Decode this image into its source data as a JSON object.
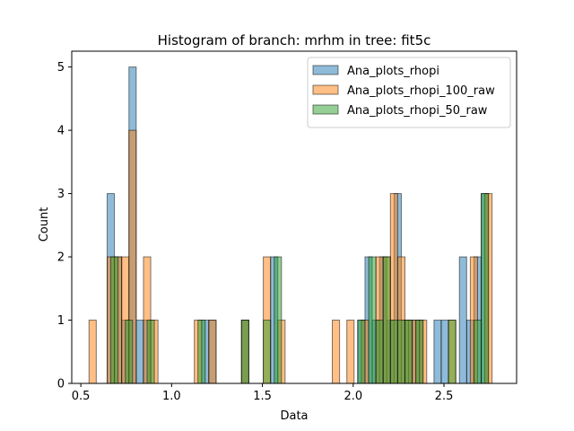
{
  "chart_data": {
    "type": "histogram",
    "title": "Histogram of branch: mrhm in tree: fit5c",
    "xlabel": "Data",
    "ylabel": "Count",
    "xlim": [
      0.45,
      2.9
    ],
    "ylim": [
      0,
      5.25
    ],
    "xticks": [
      0.5,
      1.0,
      1.5,
      2.0,
      2.5
    ],
    "xtick_labels": [
      "0.5",
      "1.0",
      "1.5",
      "2.0",
      "2.5"
    ],
    "yticks": [
      0,
      1,
      2,
      3,
      4,
      5
    ],
    "ytick_labels": [
      "0",
      "1",
      "2",
      "3",
      "4",
      "5"
    ],
    "grid": false,
    "legend_position": "top-right",
    "series": [
      {
        "name": "Ana_plots_rhopi",
        "color": "#1f77b4",
        "bins": [
          {
            "x0": 0.645,
            "x1": 0.685,
            "count": 3
          },
          {
            "x0": 0.685,
            "x1": 0.725,
            "count": 2
          },
          {
            "x0": 0.725,
            "x1": 0.765,
            "count": 1
          },
          {
            "x0": 0.765,
            "x1": 0.805,
            "count": 5
          },
          {
            "x0": 0.805,
            "x1": 0.845,
            "count": 1
          },
          {
            "x0": 0.845,
            "x1": 0.885,
            "count": 1
          },
          {
            "x0": 1.165,
            "x1": 1.205,
            "count": 1
          },
          {
            "x0": 1.205,
            "x1": 1.245,
            "count": 1
          },
          {
            "x0": 1.385,
            "x1": 1.425,
            "count": 1
          },
          {
            "x0": 1.545,
            "x1": 1.585,
            "count": 2
          },
          {
            "x0": 2.025,
            "x1": 2.065,
            "count": 1
          },
          {
            "x0": 2.065,
            "x1": 2.105,
            "count": 2
          },
          {
            "x0": 2.105,
            "x1": 2.145,
            "count": 1
          },
          {
            "x0": 2.145,
            "x1": 2.185,
            "count": 2
          },
          {
            "x0": 2.185,
            "x1": 2.225,
            "count": 1
          },
          {
            "x0": 2.225,
            "x1": 2.265,
            "count": 3
          },
          {
            "x0": 2.265,
            "x1": 2.305,
            "count": 1
          },
          {
            "x0": 2.305,
            "x1": 2.345,
            "count": 1
          },
          {
            "x0": 2.345,
            "x1": 2.385,
            "count": 1
          },
          {
            "x0": 2.445,
            "x1": 2.485,
            "count": 1
          },
          {
            "x0": 2.485,
            "x1": 2.525,
            "count": 1
          },
          {
            "x0": 2.585,
            "x1": 2.625,
            "count": 2
          },
          {
            "x0": 2.625,
            "x1": 2.665,
            "count": 1
          },
          {
            "x0": 2.665,
            "x1": 2.705,
            "count": 2
          },
          {
            "x0": 2.705,
            "x1": 2.745,
            "count": 3
          }
        ]
      },
      {
        "name": "Ana_plots_rhopi_100_raw",
        "color": "#ff7f0e",
        "bins": [
          {
            "x0": 0.545,
            "x1": 0.585,
            "count": 1
          },
          {
            "x0": 0.645,
            "x1": 0.685,
            "count": 2
          },
          {
            "x0": 0.685,
            "x1": 0.725,
            "count": 2
          },
          {
            "x0": 0.725,
            "x1": 0.765,
            "count": 2
          },
          {
            "x0": 0.765,
            "x1": 0.805,
            "count": 4
          },
          {
            "x0": 0.845,
            "x1": 0.885,
            "count": 2
          },
          {
            "x0": 0.885,
            "x1": 0.925,
            "count": 1
          },
          {
            "x0": 1.125,
            "x1": 1.165,
            "count": 1
          },
          {
            "x0": 1.205,
            "x1": 1.245,
            "count": 1
          },
          {
            "x0": 1.385,
            "x1": 1.425,
            "count": 1
          },
          {
            "x0": 1.505,
            "x1": 1.545,
            "count": 2
          },
          {
            "x0": 1.585,
            "x1": 1.625,
            "count": 1
          },
          {
            "x0": 1.885,
            "x1": 1.925,
            "count": 1
          },
          {
            "x0": 1.965,
            "x1": 2.005,
            "count": 1
          },
          {
            "x0": 2.045,
            "x1": 2.085,
            "count": 1
          },
          {
            "x0": 2.125,
            "x1": 2.165,
            "count": 2
          },
          {
            "x0": 2.165,
            "x1": 2.205,
            "count": 2
          },
          {
            "x0": 2.205,
            "x1": 2.245,
            "count": 3
          },
          {
            "x0": 2.245,
            "x1": 2.285,
            "count": 2
          },
          {
            "x0": 2.285,
            "x1": 2.325,
            "count": 1
          },
          {
            "x0": 2.325,
            "x1": 2.365,
            "count": 1
          },
          {
            "x0": 2.365,
            "x1": 2.405,
            "count": 1
          },
          {
            "x0": 2.525,
            "x1": 2.565,
            "count": 1
          },
          {
            "x0": 2.645,
            "x1": 2.685,
            "count": 2
          },
          {
            "x0": 2.725,
            "x1": 2.765,
            "count": 3
          }
        ]
      },
      {
        "name": "Ana_plots_rhopi_50_raw",
        "color": "#2ca02c",
        "bins": [
          {
            "x0": 0.665,
            "x1": 0.705,
            "count": 2
          },
          {
            "x0": 0.745,
            "x1": 0.785,
            "count": 1
          },
          {
            "x0": 0.865,
            "x1": 0.905,
            "count": 1
          },
          {
            "x0": 1.145,
            "x1": 1.185,
            "count": 1
          },
          {
            "x0": 1.385,
            "x1": 1.425,
            "count": 1
          },
          {
            "x0": 1.505,
            "x1": 1.545,
            "count": 1
          },
          {
            "x0": 1.565,
            "x1": 1.605,
            "count": 2
          },
          {
            "x0": 2.025,
            "x1": 2.065,
            "count": 1
          },
          {
            "x0": 2.085,
            "x1": 2.125,
            "count": 2
          },
          {
            "x0": 2.125,
            "x1": 2.165,
            "count": 1
          },
          {
            "x0": 2.165,
            "x1": 2.205,
            "count": 2
          },
          {
            "x0": 2.205,
            "x1": 2.245,
            "count": 1
          },
          {
            "x0": 2.245,
            "x1": 2.285,
            "count": 1
          },
          {
            "x0": 2.285,
            "x1": 2.325,
            "count": 1
          },
          {
            "x0": 2.345,
            "x1": 2.385,
            "count": 1
          },
          {
            "x0": 2.525,
            "x1": 2.565,
            "count": 1
          },
          {
            "x0": 2.665,
            "x1": 2.705,
            "count": 1
          },
          {
            "x0": 2.705,
            "x1": 2.745,
            "count": 3
          }
        ]
      }
    ]
  }
}
